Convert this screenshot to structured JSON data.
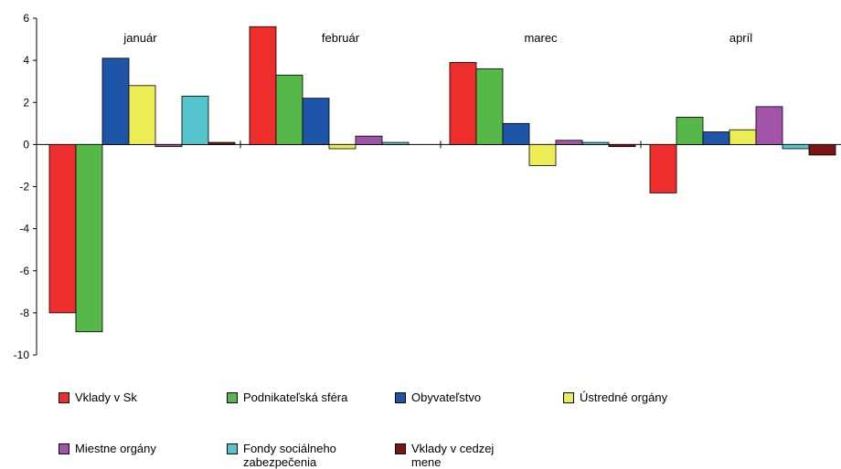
{
  "chart_data": {
    "type": "bar",
    "categories": [
      "január",
      "február",
      "marec",
      "apríl"
    ],
    "ylim": [
      -10,
      6
    ],
    "yticks": [
      6,
      4,
      2,
      0,
      -2,
      -4,
      -6,
      -8,
      -10
    ],
    "grid": false,
    "legend_position": "bottom",
    "series": [
      {
        "name": "Vklady v Sk",
        "color": "#ee2d2d",
        "values": [
          -8.0,
          5.6,
          3.9,
          -2.3
        ]
      },
      {
        "name": "Podnikateľská sféra",
        "color": "#55b848",
        "values": [
          -8.9,
          3.3,
          3.6,
          1.3
        ]
      },
      {
        "name": "Obyvateľstvo",
        "color": "#1f55a8",
        "values": [
          4.1,
          2.2,
          1.0,
          0.6
        ]
      },
      {
        "name": "Ústredné orgány",
        "color": "#ecec55",
        "values": [
          2.8,
          -0.2,
          -1.0,
          0.7
        ]
      },
      {
        "name": "Miestne orgány",
        "color": "#a055a8",
        "values": [
          -0.1,
          0.4,
          0.2,
          1.8
        ]
      },
      {
        "name": "Fondy sociálneho zabezpečenia",
        "color": "#55c4cc",
        "values": [
          2.3,
          0.1,
          0.1,
          -0.2
        ]
      },
      {
        "name": "Vklady v cedzej mene",
        "color": "#7a1515",
        "values": [
          0.1,
          0.0,
          -0.1,
          -0.5
        ]
      }
    ]
  }
}
